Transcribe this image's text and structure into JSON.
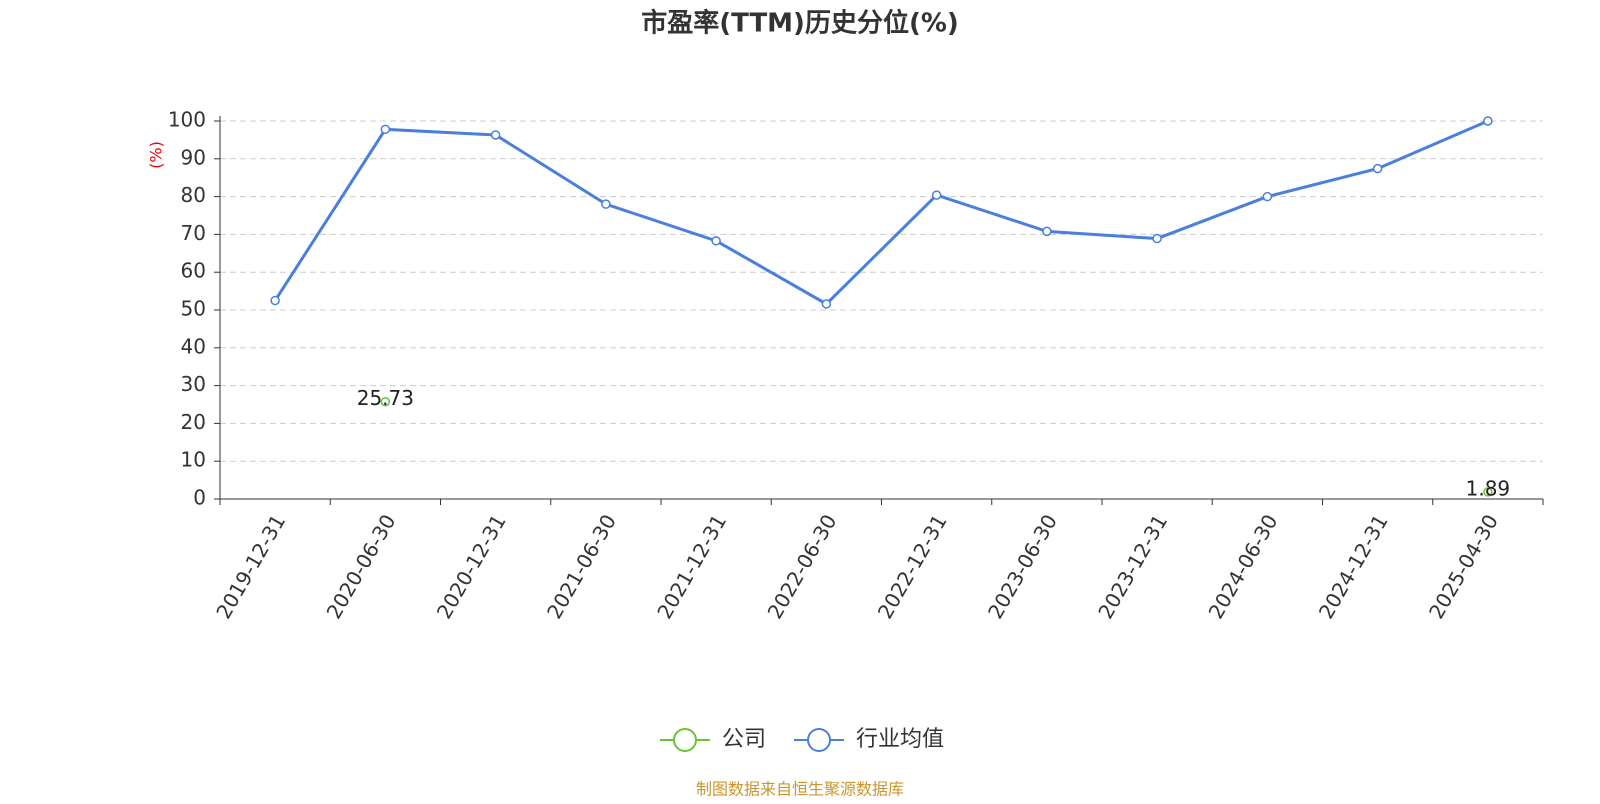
{
  "chart_data": {
    "type": "line",
    "title": "市盈率(TTM)历史分位(%)",
    "y_label": "(%)",
    "source": "制图数据来自恒生聚源数据库",
    "categories": [
      "2019-12-31",
      "2020-06-30",
      "2020-12-31",
      "2021-06-30",
      "2021-12-31",
      "2022-06-30",
      "2022-12-31",
      "2023-06-30",
      "2023-12-31",
      "2024-06-30",
      "2024-12-31",
      "2025-04-30"
    ],
    "series": [
      {
        "name": "公司",
        "color": "#6ac42f",
        "values": [
          null,
          25.73,
          null,
          null,
          null,
          null,
          null,
          null,
          null,
          null,
          null,
          1.89
        ],
        "show_labels": true
      },
      {
        "name": "行业均值",
        "color": "#4a7fdc",
        "values": [
          52.5,
          97.8,
          96.3,
          78,
          68.3,
          51.6,
          80.4,
          70.8,
          68.9,
          80,
          87.4,
          100
        ],
        "show_labels": false
      }
    ],
    "ylim": [
      0,
      100
    ],
    "yticks": [
      0,
      10,
      20,
      30,
      40,
      50,
      60,
      70,
      80,
      90,
      100
    ],
    "grid": true
  }
}
